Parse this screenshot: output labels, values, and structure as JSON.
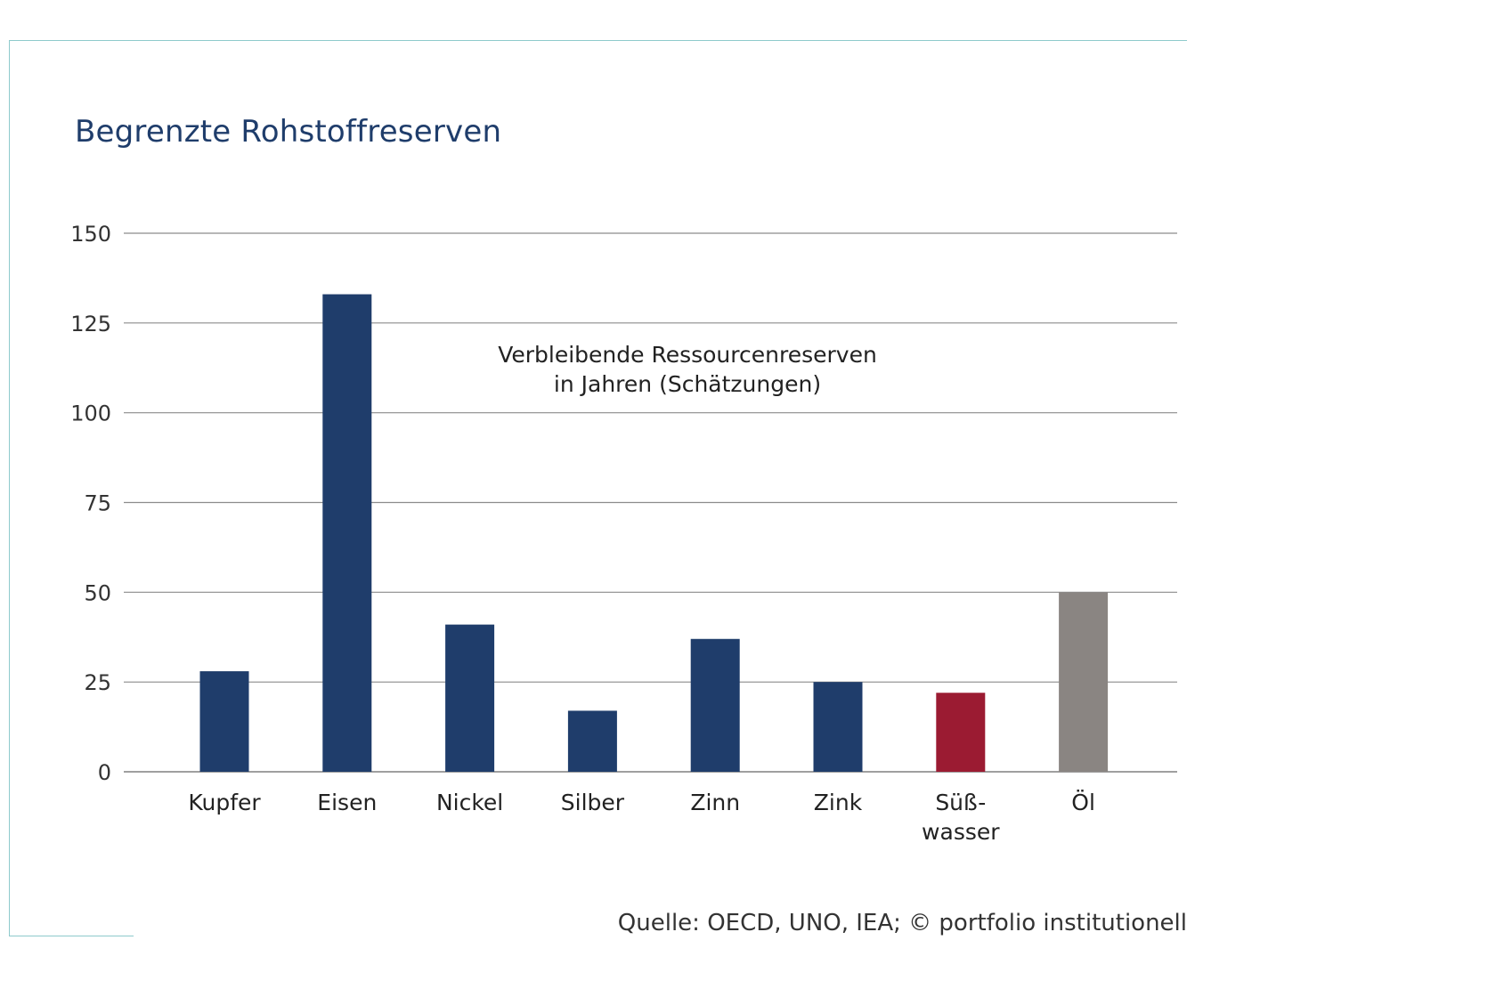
{
  "chart_data": {
    "type": "bar",
    "title": "Begrenzte Rohstoffreserven",
    "categories": [
      "Kupfer",
      "Eisen",
      "Nickel",
      "Silber",
      "Zinn",
      "Zink",
      "Süß-\nwasser",
      "Öl"
    ],
    "values": [
      28,
      133,
      41,
      17,
      37,
      25,
      22,
      50
    ],
    "bar_colors": [
      "#1f3d6b",
      "#1f3d6b",
      "#1f3d6b",
      "#1f3d6b",
      "#1f3d6b",
      "#1f3d6b",
      "#9b1b32",
      "#8a8582"
    ],
    "ylim": [
      0,
      150
    ],
    "yticks": [
      0,
      25,
      50,
      75,
      100,
      125,
      150
    ],
    "grid": true,
    "annotation": [
      "Verbleibende Ressourcenreserven",
      "in Jahren (Schätzungen)"
    ],
    "xlabel": "",
    "ylabel": ""
  },
  "source": "Quelle: OECD, UNO, IEA; © portfolio institutionell",
  "colors": {
    "frame": "#8ecacc",
    "title": "#1f3d6b",
    "grid": "#8c8c8c"
  }
}
